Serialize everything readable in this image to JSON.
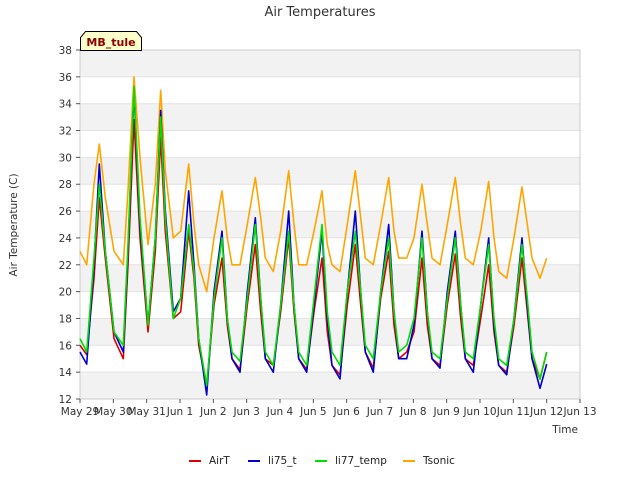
{
  "chart_data": {
    "type": "line",
    "title": "Air Temperatures",
    "xlabel": "Time",
    "ylabel": "Air Temperature (C)",
    "station_badge": "MB_tule",
    "ylim": [
      12,
      38
    ],
    "yticks": [
      12,
      14,
      16,
      18,
      20,
      22,
      24,
      26,
      28,
      30,
      32,
      34,
      36,
      38
    ],
    "xlim": [
      0,
      15
    ],
    "xtick_positions": [
      0,
      1,
      2,
      3,
      4,
      5,
      6,
      7,
      8,
      9,
      10,
      11,
      12,
      13,
      14,
      15
    ],
    "xtick_labels": [
      "May 29",
      "May 30",
      "May 31",
      "Jun 1",
      "Jun 2",
      "Jun 3",
      "Jun 4",
      "Jun 5",
      "Jun 6",
      "Jun 7",
      "Jun 8",
      "Jun 9",
      "Jun 10",
      "Jun 11",
      "Jun 12",
      "Jun 13"
    ],
    "grid": "horizontal bands",
    "legend_position": "bottom",
    "series": [
      {
        "name": "AirT",
        "color": "#dd0000",
        "x": [
          0.0,
          0.2,
          0.42,
          0.58,
          0.76,
          1.02,
          1.3,
          1.44,
          1.62,
          1.8,
          2.04,
          2.26,
          2.42,
          2.56,
          2.8,
          3.02,
          3.26,
          3.42,
          3.56,
          3.8,
          4.02,
          4.26,
          4.42,
          4.56,
          4.8,
          5.02,
          5.26,
          5.42,
          5.56,
          5.8,
          6.02,
          6.26,
          6.42,
          6.56,
          6.8,
          7.02,
          7.26,
          7.42,
          7.56,
          7.8,
          8.02,
          8.26,
          8.42,
          8.56,
          8.8,
          9.02,
          9.26,
          9.42,
          9.56,
          9.8,
          10.02,
          10.26,
          10.42,
          10.56,
          10.8,
          11.02,
          11.26,
          11.42,
          11.56,
          11.8,
          12.02,
          12.26,
          12.42,
          12.56,
          12.8,
          13.02,
          13.26,
          13.42,
          13.56,
          13.8,
          14.0
        ],
        "y": [
          16.0,
          15.3,
          21.0,
          27.0,
          22.5,
          16.5,
          15.0,
          22.0,
          32.8,
          24.0,
          17.0,
          23.0,
          31.5,
          24.5,
          18.0,
          18.5,
          24.5,
          21.0,
          16.0,
          13.0,
          19.0,
          22.5,
          17.5,
          15.0,
          14.2,
          19.0,
          23.5,
          18.5,
          15.0,
          14.5,
          18.5,
          24.0,
          18.5,
          15.0,
          14.2,
          18.5,
          22.5,
          17.0,
          14.5,
          13.8,
          19.0,
          23.5,
          19.0,
          15.5,
          14.3,
          19.5,
          23.0,
          17.5,
          15.0,
          15.5,
          17.0,
          22.5,
          17.5,
          15.0,
          14.5,
          19.0,
          22.8,
          18.0,
          15.0,
          14.5,
          18.0,
          22.0,
          17.0,
          14.5,
          14.0,
          17.5,
          22.5,
          18.5,
          15.0,
          13.5,
          15.5
        ]
      },
      {
        "name": "li75_t",
        "color": "#0000cc",
        "x": [
          0.0,
          0.2,
          0.42,
          0.58,
          0.76,
          1.02,
          1.3,
          1.44,
          1.62,
          1.8,
          2.04,
          2.26,
          2.42,
          2.56,
          2.8,
          3.02,
          3.26,
          3.42,
          3.56,
          3.8,
          4.02,
          4.26,
          4.42,
          4.56,
          4.8,
          5.02,
          5.26,
          5.42,
          5.56,
          5.8,
          6.02,
          6.26,
          6.42,
          6.56,
          6.8,
          7.02,
          7.26,
          7.42,
          7.56,
          7.8,
          8.02,
          8.26,
          8.42,
          8.56,
          8.8,
          9.02,
          9.26,
          9.42,
          9.56,
          9.8,
          10.02,
          10.26,
          10.42,
          10.56,
          10.8,
          11.02,
          11.26,
          11.42,
          11.56,
          11.8,
          12.02,
          12.26,
          12.42,
          12.56,
          12.8,
          13.02,
          13.26,
          13.42,
          13.56,
          13.8,
          14.0
        ],
        "y": [
          15.5,
          14.6,
          22.0,
          29.5,
          23.0,
          17.0,
          15.5,
          23.0,
          35.0,
          25.0,
          17.5,
          24.0,
          33.5,
          26.0,
          18.5,
          19.5,
          27.5,
          22.0,
          16.5,
          12.3,
          20.0,
          24.5,
          18.0,
          15.0,
          14.0,
          20.0,
          25.5,
          19.5,
          15.0,
          14.0,
          19.0,
          26.0,
          19.0,
          15.0,
          14.0,
          19.0,
          24.5,
          18.0,
          14.5,
          13.5,
          20.0,
          26.0,
          20.0,
          15.5,
          14.0,
          20.0,
          25.0,
          18.5,
          15.0,
          15.0,
          17.5,
          24.5,
          18.5,
          15.0,
          14.3,
          20.0,
          24.5,
          19.0,
          15.0,
          14.0,
          19.0,
          24.0,
          17.5,
          14.5,
          13.8,
          18.0,
          24.0,
          19.0,
          15.0,
          12.8,
          14.6
        ]
      },
      {
        "name": "li77_temp",
        "color": "#00dd00",
        "x": [
          0.0,
          0.2,
          0.42,
          0.58,
          0.76,
          1.02,
          1.3,
          1.44,
          1.62,
          1.8,
          2.04,
          2.26,
          2.42,
          2.56,
          2.8,
          3.02,
          3.26,
          3.42,
          3.56,
          3.8,
          4.02,
          4.26,
          4.42,
          4.56,
          4.8,
          5.02,
          5.26,
          5.42,
          5.56,
          5.8,
          6.02,
          6.26,
          6.42,
          6.56,
          6.8,
          7.02,
          7.26,
          7.42,
          7.56,
          7.8,
          8.02,
          8.26,
          8.42,
          8.56,
          8.8,
          9.02,
          9.26,
          9.42,
          9.56,
          9.8,
          10.02,
          10.26,
          10.42,
          10.56,
          10.8,
          11.02,
          11.26,
          11.42,
          11.56,
          11.8,
          12.02,
          12.26,
          12.42,
          12.56,
          12.8,
          13.02,
          13.26,
          13.42,
          13.56,
          13.8,
          14.0
        ],
        "y": [
          16.5,
          15.5,
          22.5,
          28.0,
          23.0,
          17.0,
          16.0,
          23.5,
          35.3,
          25.5,
          17.5,
          24.0,
          33.0,
          25.5,
          18.0,
          19.5,
          25.0,
          21.5,
          16.5,
          13.0,
          19.5,
          24.0,
          18.0,
          15.5,
          14.8,
          19.5,
          25.0,
          19.5,
          15.5,
          14.5,
          19.0,
          24.5,
          19.0,
          15.5,
          14.5,
          19.5,
          25.0,
          18.5,
          15.5,
          14.5,
          20.0,
          24.5,
          20.0,
          16.0,
          15.0,
          20.0,
          24.0,
          18.5,
          15.5,
          16.0,
          18.0,
          24.0,
          18.5,
          15.5,
          15.0,
          19.5,
          24.0,
          19.0,
          15.5,
          15.0,
          19.0,
          23.5,
          18.0,
          15.0,
          14.5,
          18.0,
          23.5,
          19.5,
          15.5,
          13.5,
          15.5
        ]
      },
      {
        "name": "Tsonic",
        "color": "#ffa500",
        "x": [
          0.0,
          0.2,
          0.42,
          0.58,
          0.76,
          1.02,
          1.3,
          1.44,
          1.62,
          1.8,
          2.04,
          2.26,
          2.42,
          2.56,
          2.8,
          3.02,
          3.26,
          3.42,
          3.56,
          3.8,
          4.02,
          4.26,
          4.42,
          4.56,
          4.8,
          5.02,
          5.26,
          5.42,
          5.56,
          5.8,
          6.02,
          6.26,
          6.42,
          6.56,
          6.8,
          7.02,
          7.26,
          7.42,
          7.56,
          7.8,
          8.02,
          8.26,
          8.42,
          8.56,
          8.8,
          9.02,
          9.26,
          9.42,
          9.56,
          9.8,
          10.02,
          10.26,
          10.42,
          10.56,
          10.8,
          11.02,
          11.26,
          11.42,
          11.56,
          11.8,
          12.02,
          12.26,
          12.42,
          12.56,
          12.8,
          13.02,
          13.26,
          13.42,
          13.56,
          13.8,
          14.0
        ],
        "y": [
          23.0,
          22.0,
          28.0,
          31.0,
          27.0,
          23.0,
          22.0,
          27.5,
          36.0,
          30.0,
          23.5,
          28.0,
          35.0,
          29.0,
          24.0,
          24.5,
          29.5,
          25.0,
          22.0,
          20.0,
          24.0,
          27.5,
          24.0,
          22.0,
          22.0,
          25.0,
          28.5,
          25.5,
          22.5,
          21.5,
          24.5,
          29.0,
          25.0,
          22.0,
          22.0,
          24.5,
          27.5,
          23.5,
          22.0,
          21.5,
          25.0,
          29.0,
          25.5,
          22.5,
          22.0,
          25.0,
          28.5,
          24.5,
          22.5,
          22.5,
          24.0,
          28.0,
          25.0,
          22.5,
          22.0,
          25.0,
          28.5,
          25.0,
          22.5,
          22.0,
          24.5,
          28.2,
          24.0,
          21.5,
          21.0,
          24.0,
          27.8,
          25.0,
          22.5,
          21.0,
          22.5
        ]
      }
    ]
  }
}
